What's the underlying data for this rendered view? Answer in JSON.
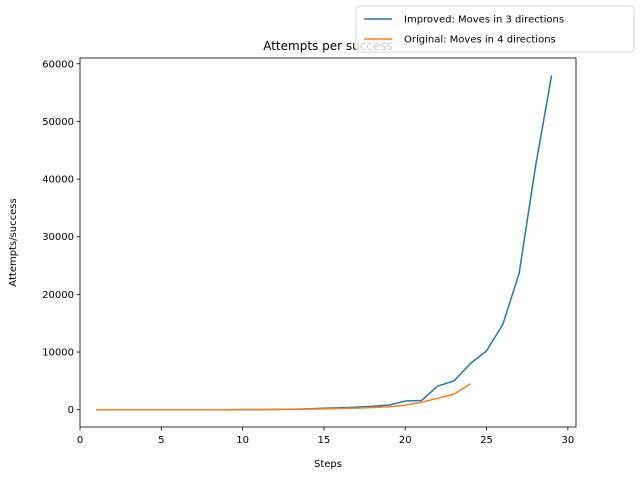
{
  "chart_data": {
    "type": "line",
    "title": "Attempts per success",
    "xlabel": "Steps",
    "ylabel": "Attempts/success",
    "xlim": [
      0,
      30.5
    ],
    "ylim": [
      -3000,
      61000
    ],
    "xticks": [
      0,
      5,
      10,
      15,
      20,
      25,
      30
    ],
    "yticks": [
      0,
      10000,
      20000,
      30000,
      40000,
      50000,
      60000
    ],
    "grid": false,
    "legend_position": "top-right",
    "series": [
      {
        "name": "Improved: Moves in 3 directions",
        "color": "#1f77b4",
        "x": [
          1,
          2,
          3,
          4,
          5,
          6,
          7,
          8,
          9,
          10,
          11,
          12,
          13,
          14,
          15,
          16,
          17,
          18,
          19,
          20,
          21,
          22,
          23,
          24,
          25,
          26,
          27,
          28,
          29
        ],
        "y": [
          0,
          0,
          0,
          0,
          0,
          0,
          0,
          0,
          0,
          10,
          20,
          50,
          80,
          150,
          250,
          350,
          450,
          600,
          800,
          1500,
          1600,
          4100,
          5000,
          8000,
          10200,
          14800,
          23600,
          42000,
          58000
        ]
      },
      {
        "name": "Original: Moves in 4 directions",
        "color": "#ff7f0e",
        "x": [
          1,
          2,
          3,
          4,
          5,
          6,
          7,
          8,
          9,
          10,
          11,
          12,
          13,
          14,
          15,
          16,
          17,
          18,
          19,
          20,
          21,
          22,
          23,
          24
        ],
        "y": [
          0,
          0,
          0,
          0,
          0,
          0,
          0,
          0,
          0,
          10,
          20,
          40,
          60,
          100,
          150,
          200,
          280,
          380,
          500,
          800,
          1300,
          2000,
          2700,
          4500
        ]
      }
    ]
  }
}
